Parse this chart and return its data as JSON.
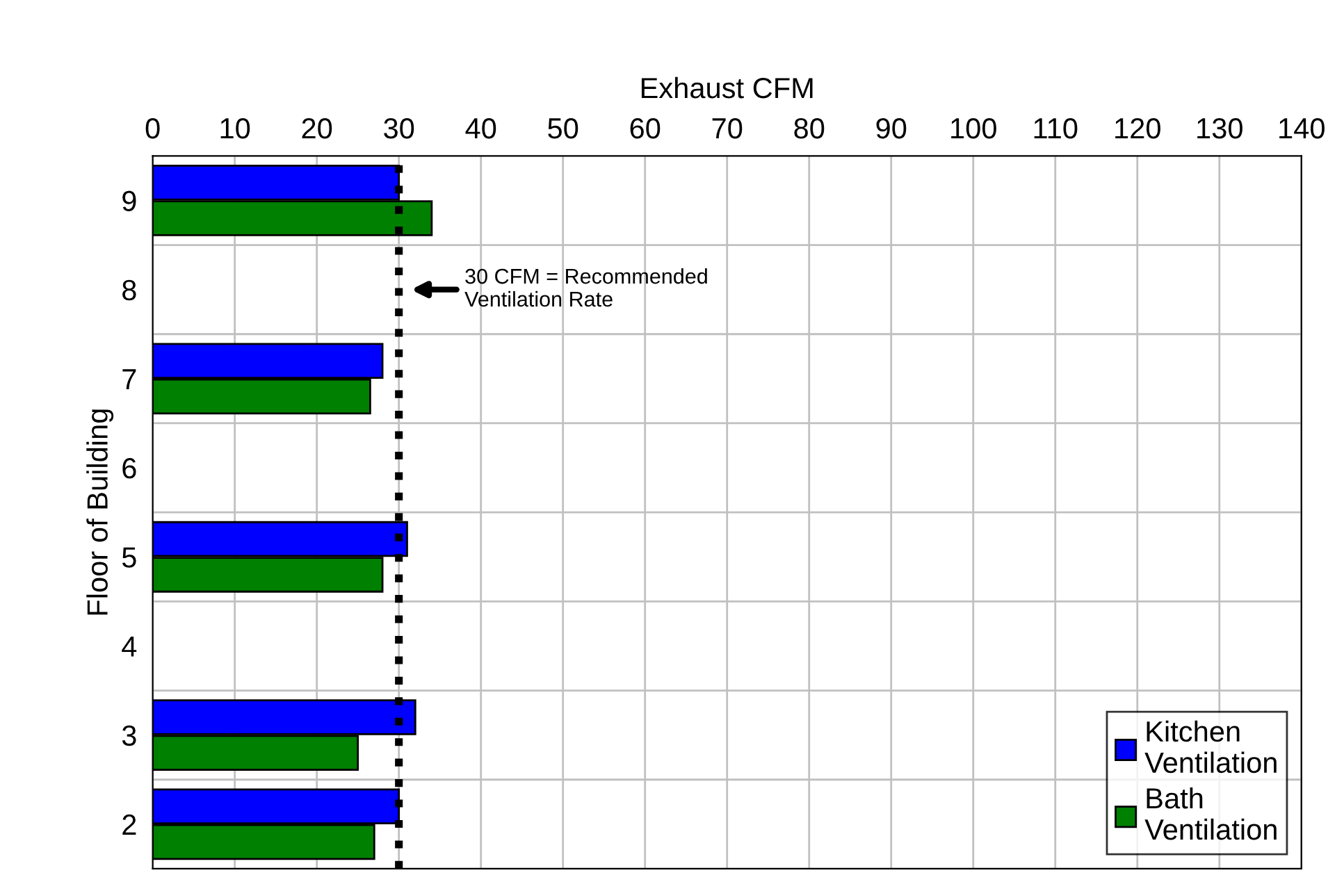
{
  "chart_data": {
    "type": "bar",
    "orientation": "horizontal",
    "xlabel": "Exhaust CFM",
    "ylabel": "Floor of Building",
    "categories": [
      "9",
      "8",
      "7",
      "6",
      "5",
      "4",
      "3",
      "2"
    ],
    "series": [
      {
        "name": "Kitchen\nVentilation",
        "color": "#0000ff",
        "values": [
          30,
          null,
          28,
          null,
          31,
          null,
          32,
          30
        ]
      },
      {
        "name": "Bath\nVentilation",
        "color": "#008000",
        "values": [
          34,
          null,
          26.5,
          null,
          28,
          null,
          25,
          27
        ]
      }
    ],
    "xlim": [
      0,
      140
    ],
    "xticks": [
      0,
      10,
      20,
      30,
      40,
      50,
      60,
      70,
      80,
      90,
      100,
      110,
      120,
      130,
      140
    ],
    "ref_lines": [
      {
        "axis": "x",
        "value": 30,
        "line_style": "dotted",
        "color": "#000000"
      }
    ],
    "annotations": [
      "30 CFM = Recommended\nVentilation Rate"
    ],
    "grid": true,
    "legend": "bottom right"
  }
}
